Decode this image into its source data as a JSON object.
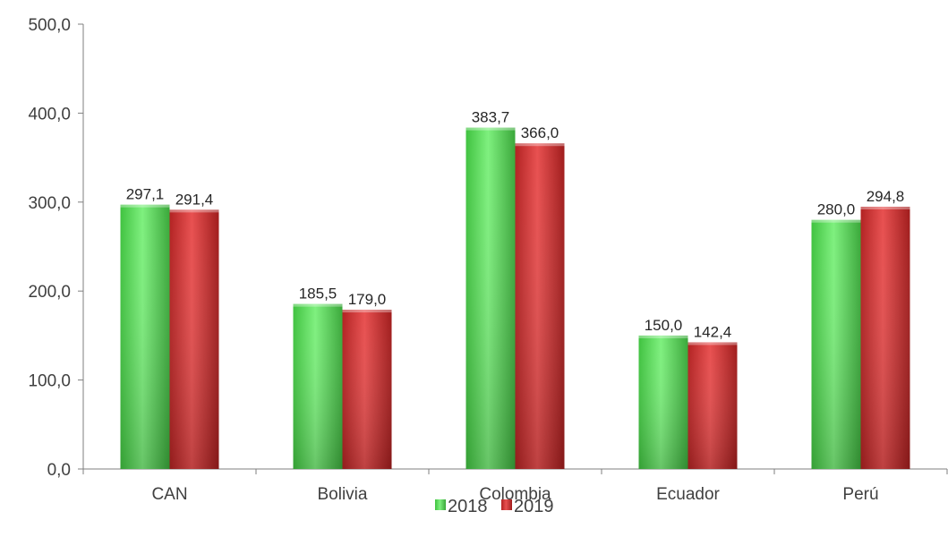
{
  "chart_data": {
    "type": "bar",
    "categories": [
      "CAN",
      "Bolivia",
      "Colombia",
      "Ecuador",
      "Perú"
    ],
    "series": [
      {
        "name": "2018",
        "values": [
          297.1,
          185.5,
          383.7,
          150.0,
          280.0
        ],
        "value_labels": [
          "297,1",
          "185,5",
          "383,7",
          "150,0",
          "280,0"
        ]
      },
      {
        "name": "2019",
        "values": [
          291.4,
          179.0,
          366.0,
          142.4,
          294.8
        ],
        "value_labels": [
          "291,4",
          "179,0",
          "366,0",
          "142,4",
          "294,8"
        ]
      }
    ],
    "y_ticks": [
      0,
      100,
      200,
      300,
      400,
      500
    ],
    "y_tick_labels": [
      "0,0",
      "100,0",
      "200,0",
      "300,0",
      "400,0",
      "500,0"
    ],
    "ylim": [
      0,
      500
    ],
    "grid": false,
    "legend_position": "bottom",
    "colors": {
      "2018": "#5ee05e",
      "2019": "#d93a3a"
    }
  }
}
